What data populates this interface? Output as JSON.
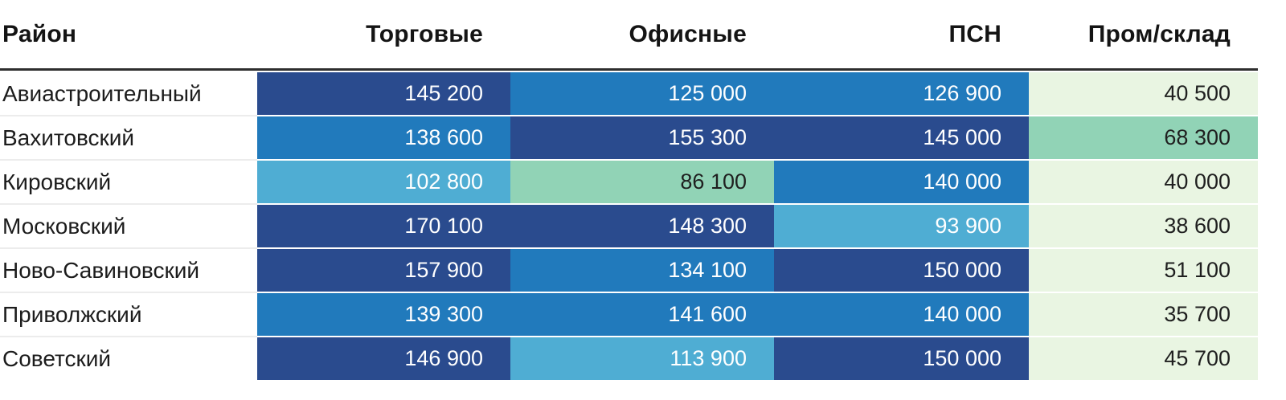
{
  "header": {
    "columns": [
      "Район",
      "Торговые",
      "Офисные",
      "ПСН",
      "Пром/склад"
    ]
  },
  "rows": [
    {
      "district": "Авиастроительный",
      "cells": [
        {
          "text": "145 200",
          "tone": "b5"
        },
        {
          "text": "125 000",
          "tone": "b4"
        },
        {
          "text": "126 900",
          "tone": "b4"
        },
        {
          "text": "40 500",
          "tone": "b1"
        }
      ]
    },
    {
      "district": "Вахитовский",
      "cells": [
        {
          "text": "138 600",
          "tone": "b4"
        },
        {
          "text": "155 300",
          "tone": "b5"
        },
        {
          "text": "145 000",
          "tone": "b5"
        },
        {
          "text": "68 300",
          "tone": "b2"
        }
      ]
    },
    {
      "district": "Кировский",
      "cells": [
        {
          "text": "102 800",
          "tone": "b3"
        },
        {
          "text": "86 100",
          "tone": "b2"
        },
        {
          "text": "140 000",
          "tone": "b4"
        },
        {
          "text": "40 000",
          "tone": "b1"
        }
      ]
    },
    {
      "district": "Московский",
      "cells": [
        {
          "text": "170 100",
          "tone": "b5"
        },
        {
          "text": "148 300",
          "tone": "b5"
        },
        {
          "text": "93 900",
          "tone": "b3"
        },
        {
          "text": "38 600",
          "tone": "b1"
        }
      ]
    },
    {
      "district": "Ново-Савиновский",
      "cells": [
        {
          "text": "157 900",
          "tone": "b5"
        },
        {
          "text": "134 100",
          "tone": "b4"
        },
        {
          "text": "150 000",
          "tone": "b5"
        },
        {
          "text": "51 100",
          "tone": "b1"
        }
      ]
    },
    {
      "district": "Приволжский",
      "cells": [
        {
          "text": "139 300",
          "tone": "b4"
        },
        {
          "text": "141 600",
          "tone": "b4"
        },
        {
          "text": "140 000",
          "tone": "b4"
        },
        {
          "text": "35 700",
          "tone": "b1"
        }
      ]
    },
    {
      "district": "Советский",
      "cells": [
        {
          "text": "146 900",
          "tone": "b5"
        },
        {
          "text": "113 900",
          "tone": "b3"
        },
        {
          "text": "150 000",
          "tone": "b5"
        },
        {
          "text": "45 700",
          "tone": "b1"
        }
      ]
    }
  ],
  "palette": {
    "b1": {
      "bg": "#e9f5e2",
      "fg": "#1f1f1f"
    },
    "b2": {
      "bg": "#91d3b6",
      "fg": "#1f1f1f"
    },
    "b3": {
      "bg": "#4fadd3",
      "fg": "#ffffff"
    },
    "b4": {
      "bg": "#217abc",
      "fg": "#ffffff"
    },
    "b5": {
      "bg": "#2a4b8e",
      "fg": "#ffffff"
    },
    "header_border": "#2e2e2e",
    "label_separator": "#ececec"
  },
  "chart_data": {
    "type": "heatmap",
    "title": "",
    "row_categories": [
      "Авиастроительный",
      "Вахитовский",
      "Кировский",
      "Московский",
      "Ново-Савиновский",
      "Приволжский",
      "Советский"
    ],
    "column_categories": [
      "Торговые",
      "Офисные",
      "ПСН",
      "Пром/склад"
    ],
    "values": [
      [
        145200,
        125000,
        126900,
        40500
      ],
      [
        138600,
        155300,
        145000,
        68300
      ],
      [
        102800,
        86100,
        140000,
        40000
      ],
      [
        170100,
        148300,
        93900,
        38600
      ],
      [
        157900,
        134100,
        150000,
        51100
      ],
      [
        139300,
        141600,
        140000,
        35700
      ],
      [
        146900,
        113900,
        150000,
        45700
      ]
    ],
    "value_range": [
      35700,
      170100
    ],
    "color_scale": [
      "#e9f5e2",
      "#91d3b6",
      "#4fadd3",
      "#217abc",
      "#2a4b8e"
    ],
    "legend": "none",
    "grid": "off"
  }
}
